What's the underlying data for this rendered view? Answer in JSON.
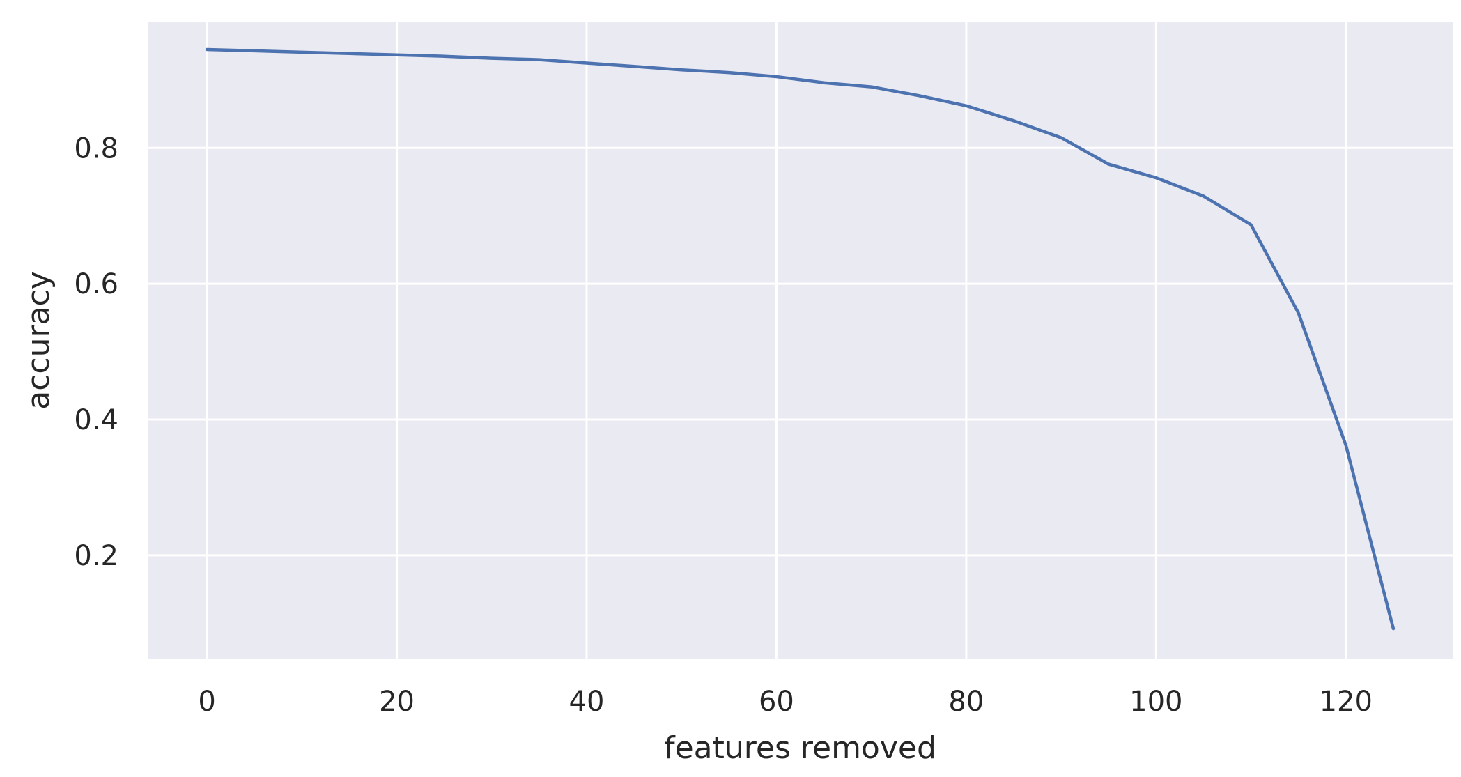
{
  "chart_data": {
    "type": "line",
    "title": "",
    "xlabel": "features removed",
    "ylabel": "accuracy",
    "xlim": [
      -6.25,
      131.25
    ],
    "ylim": [
      0.048,
      0.985
    ],
    "x_ticks": [
      0,
      20,
      40,
      60,
      80,
      100,
      120
    ],
    "y_ticks": [
      0.2,
      0.4,
      0.6,
      0.8
    ],
    "x_tick_labels": [
      "0",
      "20",
      "40",
      "60",
      "80",
      "100",
      "120"
    ],
    "y_tick_labels": [
      "0.2",
      "0.4",
      "0.6",
      "0.8"
    ],
    "grid": true,
    "background": "#eaeaf2",
    "grid_color": "#ffffff",
    "series": [
      {
        "color": "#4c72b0",
        "x": [
          0,
          5,
          10,
          15,
          20,
          25,
          30,
          35,
          40,
          45,
          50,
          55,
          60,
          65,
          70,
          75,
          80,
          85,
          90,
          95,
          100,
          105,
          110,
          115,
          120,
          125
        ],
        "y": [
          0.945,
          0.943,
          0.941,
          0.939,
          0.937,
          0.935,
          0.932,
          0.93,
          0.925,
          0.92,
          0.915,
          0.911,
          0.905,
          0.896,
          0.89,
          0.877,
          0.862,
          0.84,
          0.815,
          0.776,
          0.756,
          0.729,
          0.687,
          0.557,
          0.362,
          0.092
        ]
      }
    ]
  }
}
